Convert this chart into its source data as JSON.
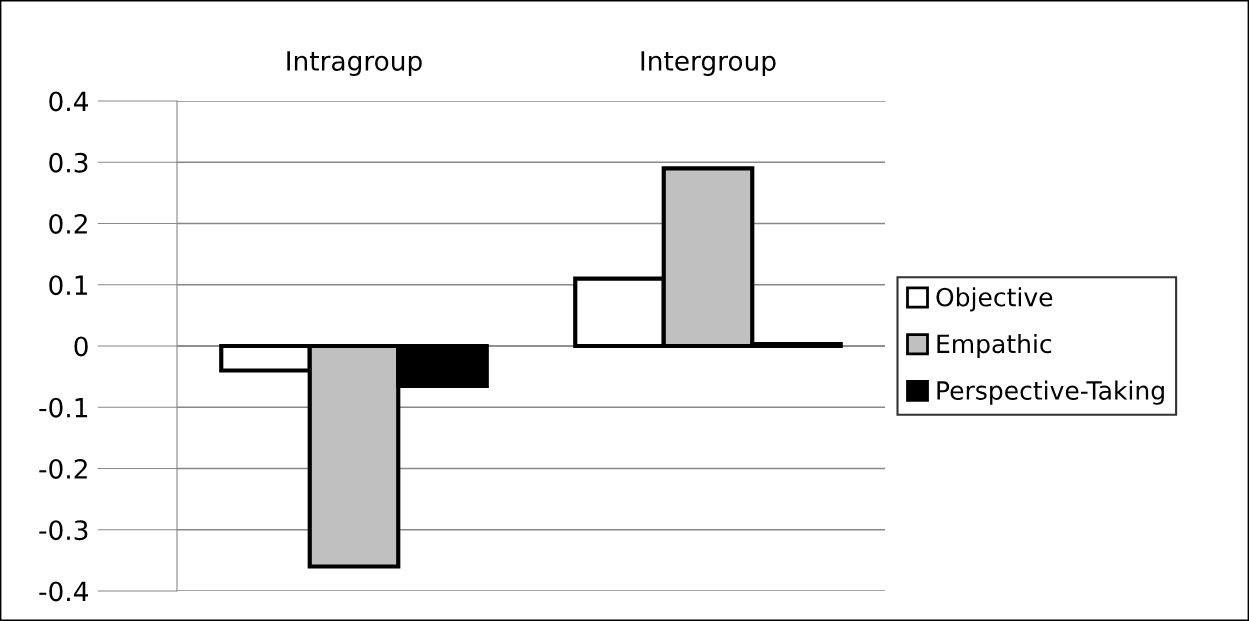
{
  "chart_data": {
    "type": "bar",
    "categories": [
      "Intragroup",
      "Intergroup"
    ],
    "series": [
      {
        "name": "Objective",
        "color": "#ffffff",
        "values": [
          -0.04,
          0.11
        ]
      },
      {
        "name": "Empathic",
        "color": "#c0c0c0",
        "values": [
          -0.36,
          0.29
        ]
      },
      {
        "name": "Perspective-Taking",
        "color": "#000000",
        "values": [
          -0.065,
          0.003
        ]
      }
    ],
    "ylim": [
      -0.4,
      0.4
    ],
    "yticks": [
      {
        "value": -0.4,
        "label": "-0.4"
      },
      {
        "value": -0.3,
        "label": "-0.3"
      },
      {
        "value": -0.2,
        "label": "-0.2"
      },
      {
        "value": -0.1,
        "label": "-0.1"
      },
      0,
      0.1,
      0.2,
      0.3,
      0.4
    ],
    "grid": "y",
    "legend": "right"
  }
}
